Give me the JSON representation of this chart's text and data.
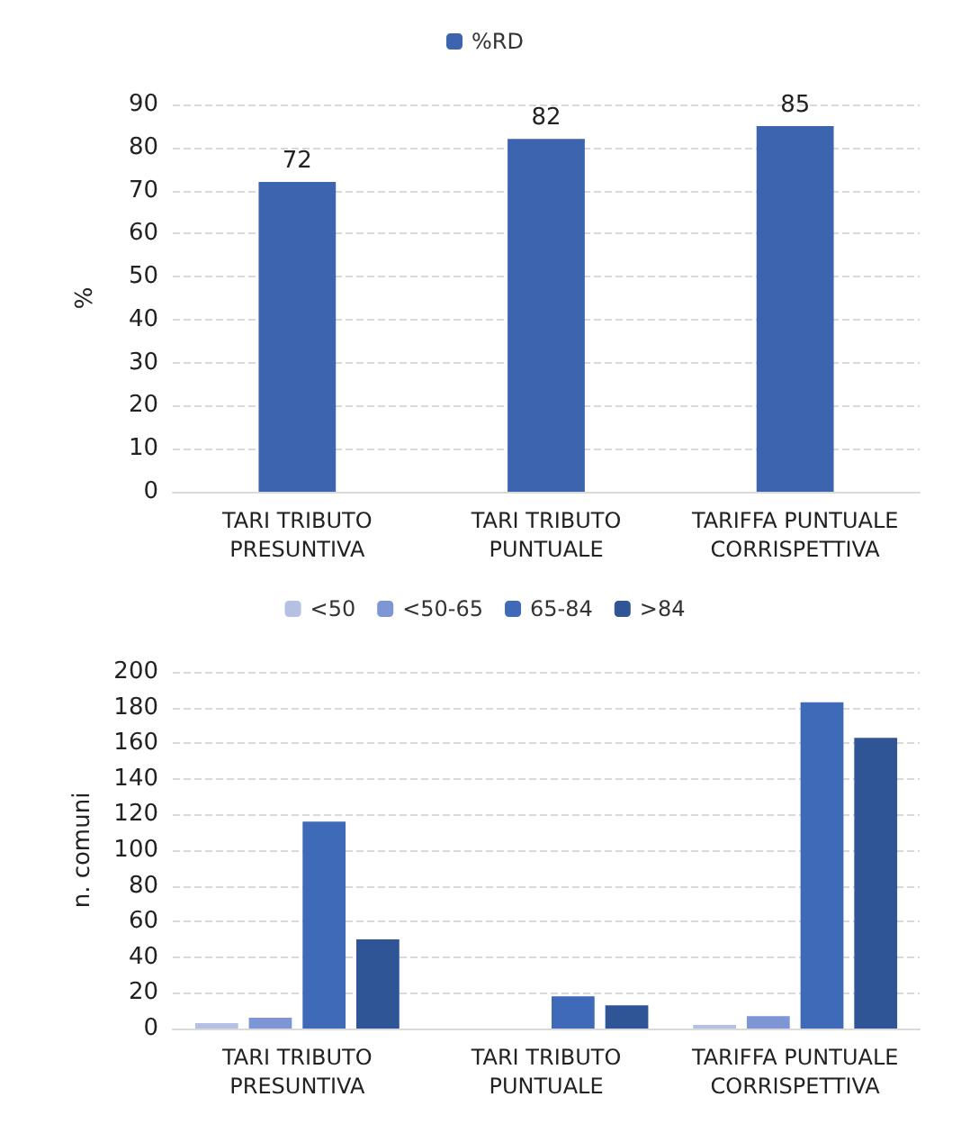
{
  "chart_data": [
    {
      "type": "bar",
      "ylabel": "%",
      "categories": [
        "TARI TRIBUTO\nPRESUNTIVA",
        "TARI TRIBUTO\nPUNTUALE",
        "TARIFFA PUNTUALE\nCORRISPETTIVA"
      ],
      "series": [
        {
          "name": "%RD",
          "color": "#3d64ae",
          "values": [
            72,
            82,
            85
          ]
        }
      ],
      "ylim": [
        0,
        90
      ],
      "yticks": [
        0,
        10,
        20,
        30,
        40,
        50,
        60,
        70,
        80,
        90
      ],
      "grid": "y",
      "legend": "top",
      "data_labels": true
    },
    {
      "type": "bar",
      "ylabel": "n. comuni",
      "categories": [
        "TARI TRIBUTO\nPRESUNTIVA",
        "TARI TRIBUTO\nPUNTUALE",
        "TARIFFA PUNTUALE\nCORRISPETTIVA"
      ],
      "series": [
        {
          "name": "<50",
          "color": "#b4c0e4",
          "values": [
            3,
            0,
            2
          ]
        },
        {
          "name": "<50-65",
          "color": "#7f96d6",
          "values": [
            6,
            0,
            7
          ]
        },
        {
          "name": "65-84",
          "color": "#3f6ab8",
          "values": [
            116,
            18,
            183
          ]
        },
        {
          "name": ">84",
          "color": "#2f5597",
          "values": [
            50,
            13,
            163
          ]
        }
      ],
      "ylim": [
        0,
        200
      ],
      "yticks": [
        0,
        20,
        40,
        60,
        80,
        100,
        120,
        140,
        160,
        180,
        200
      ],
      "grid": "y",
      "legend": "top"
    }
  ]
}
